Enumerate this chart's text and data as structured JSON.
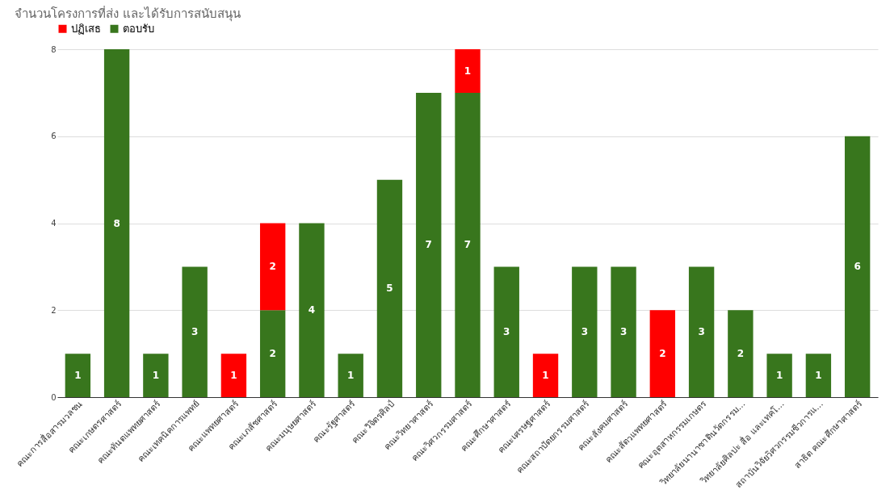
{
  "chart_data": {
    "type": "bar",
    "title": "จำนวนโครงการที่ส่ง และได้รับการสนับสนุน",
    "stacked": true,
    "data_labels": true,
    "legend": "top",
    "grid": "y",
    "categories": [
      "คณะการสื่อสารมวลชน",
      "คณะเกษตรศาสตร์",
      "คณะทันตแพทยศาสตร์",
      "คณะเทคนิคการแพทย์",
      "คณะแพทยศาสตร์",
      "คณะเภสัชศาสตร์",
      "คณะมนุษยศาสตร์",
      "คณะรัฐศาสตร์",
      "คณะวิจิตรศิลป์",
      "คณะวิทยาศาสตร์",
      "คณะวิศวกรรมศาสตร์",
      "คณะศึกษาศาสตร์",
      "คณะเศรษฐศาสตร์",
      "คณะสถาปัตยกรรมศาสตร์",
      "คณะสังคมศาสตร์",
      "คณะสัตวแพทยศาสตร์",
      "คณะอุตสาหกรรมเกษตร",
      "วิทยาลัยนานาชาตินวัตกรรม...",
      "วิทยาลัยศิลปะ สื่อ และเทคโ...",
      "สถาบันวิจัยวิศวกรรมชีวการแ...",
      "สาธิต คณะศึกษาศาสตร์"
    ],
    "series": [
      {
        "name": "ตอบรับ",
        "color": "#38761d",
        "values": [
          1,
          8,
          1,
          3,
          null,
          2,
          4,
          1,
          5,
          7,
          7,
          3,
          null,
          3,
          3,
          null,
          3,
          2,
          1,
          1,
          6
        ]
      },
      {
        "name": "ปฏิเสธ",
        "color": "#ff0000",
        "values": [
          null,
          null,
          null,
          null,
          1,
          2,
          null,
          null,
          null,
          null,
          1,
          null,
          1,
          null,
          null,
          2,
          null,
          null,
          null,
          null,
          null
        ]
      }
    ],
    "ylim": [
      0,
      8
    ],
    "yticks": [
      0,
      2,
      4,
      6,
      8
    ]
  }
}
